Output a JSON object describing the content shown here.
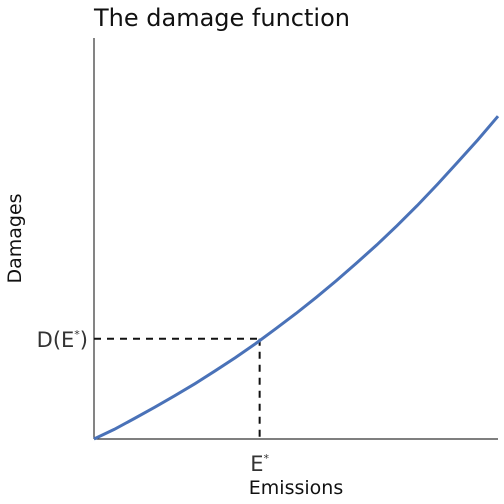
{
  "chart_data": {
    "type": "line",
    "title": "The damage function",
    "xlabel": "Emissions",
    "ylabel": "Damages",
    "xlim": [
      0,
      1
    ],
    "ylim": [
      0,
      1
    ],
    "grid": false,
    "series": [
      {
        "name": "damage function",
        "x": [
          0,
          0.05,
          0.1,
          0.15,
          0.2,
          0.25,
          0.3,
          0.35,
          0.4,
          0.45,
          0.5,
          0.55,
          0.6,
          0.65,
          0.7,
          0.75,
          0.8,
          0.85,
          0.9,
          0.95,
          1.0
        ],
        "y": [
          0,
          0.024,
          0.051,
          0.079,
          0.108,
          0.138,
          0.17,
          0.203,
          0.238,
          0.275,
          0.313,
          0.353,
          0.395,
          0.439,
          0.484,
          0.532,
          0.582,
          0.635,
          0.69,
          0.746,
          0.805
        ]
      }
    ],
    "marker": {
      "x": 0.41,
      "y": 0.25,
      "x_tick_label": "E",
      "y_tick_label_prefix": "D(E",
      "y_tick_label_suffix": ")",
      "superscript": "*"
    },
    "colors": {
      "line": "#4a72b8",
      "axes": "#333333",
      "guide": "#111111"
    }
  }
}
